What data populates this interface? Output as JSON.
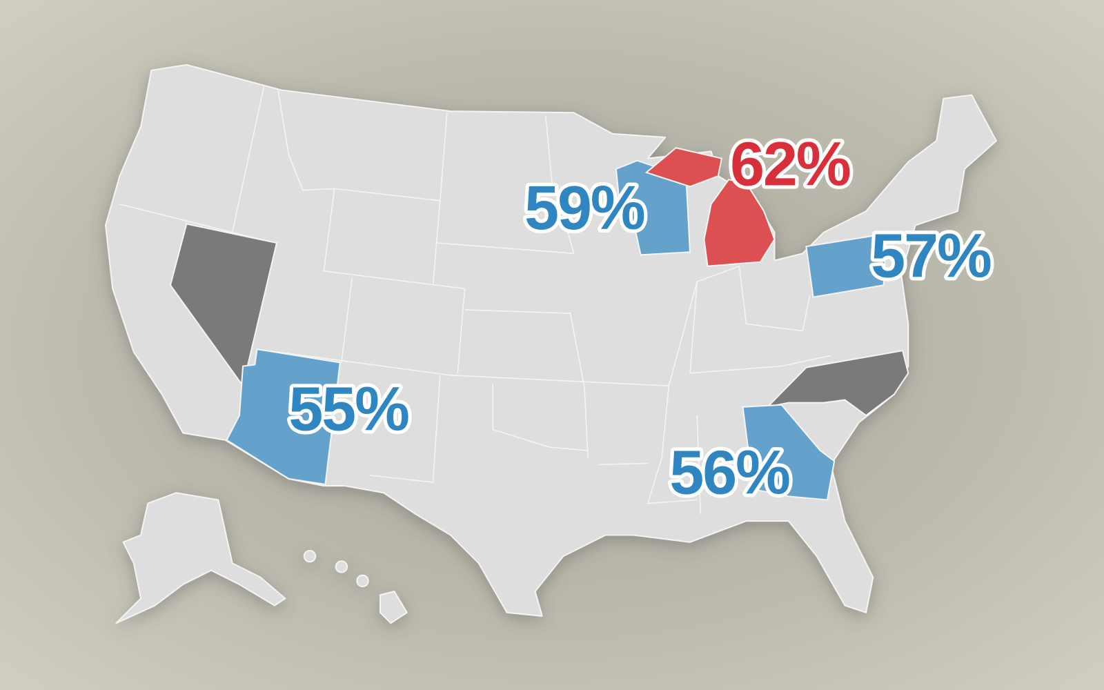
{
  "labels": [
    {
      "text": "59%",
      "color": "#2f86c1"
    },
    {
      "text": "62%",
      "color": "#d8303a"
    },
    {
      "text": "57%",
      "color": "#2f86c1"
    },
    {
      "text": "55%",
      "color": "#2f86c1"
    },
    {
      "text": "56%",
      "color": "#2f86c1"
    }
  ]
}
